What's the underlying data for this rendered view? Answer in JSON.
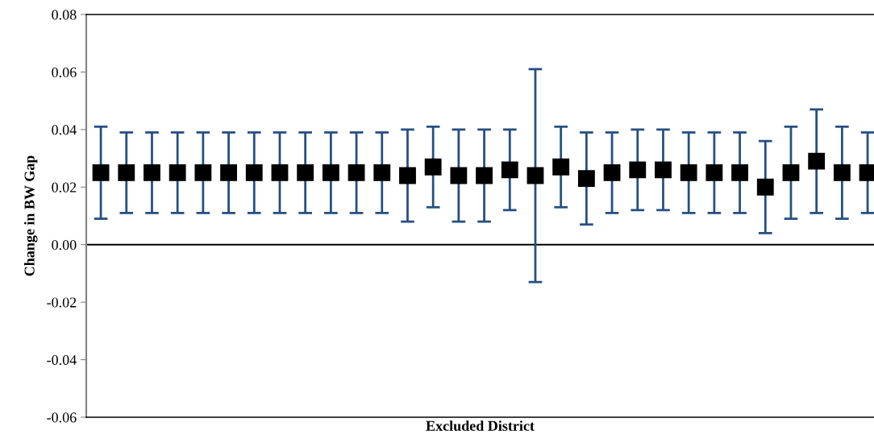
{
  "chart_data": {
    "type": "scatter",
    "xlabel": "Excluded District",
    "ylabel": "Change in BW Gap",
    "categories": [
      null,
      null,
      null,
      null,
      null,
      null,
      null,
      null,
      null,
      null,
      null,
      null,
      null,
      null,
      null,
      null,
      null,
      null,
      null,
      null,
      null,
      null,
      null,
      null,
      null,
      null,
      null,
      null,
      null,
      null,
      null
    ],
    "series": [
      {
        "color": "#000000",
        "values": [
          0.025,
          0.025,
          0.025,
          0.025,
          0.025,
          0.025,
          0.025,
          0.025,
          0.025,
          0.025,
          0.025,
          0.025,
          0.024,
          0.027,
          0.024,
          0.024,
          0.026,
          0.024,
          0.027,
          0.023,
          0.025,
          0.026,
          0.026,
          0.025,
          0.025,
          0.025,
          0.02,
          0.025,
          0.029,
          0.025,
          0.025
        ],
        "errors": [
          [
            0.009,
            0.041
          ],
          [
            0.011,
            0.039
          ],
          [
            0.011,
            0.039
          ],
          [
            0.011,
            0.039
          ],
          [
            0.011,
            0.039
          ],
          [
            0.011,
            0.039
          ],
          [
            0.011,
            0.039
          ],
          [
            0.011,
            0.039
          ],
          [
            0.011,
            0.039
          ],
          [
            0.011,
            0.039
          ],
          [
            0.011,
            0.039
          ],
          [
            0.011,
            0.039
          ],
          [
            0.008,
            0.04
          ],
          [
            0.013,
            0.041
          ],
          [
            0.008,
            0.04
          ],
          [
            0.008,
            0.04
          ],
          [
            0.012,
            0.04
          ],
          [
            -0.013,
            0.061
          ],
          [
            0.013,
            0.041
          ],
          [
            0.007,
            0.039
          ],
          [
            0.011,
            0.039
          ],
          [
            0.012,
            0.04
          ],
          [
            0.012,
            0.04
          ],
          [
            0.011,
            0.039
          ],
          [
            0.011,
            0.039
          ],
          [
            0.011,
            0.039
          ],
          [
            0.004,
            0.036
          ],
          [
            0.009,
            0.041
          ],
          [
            0.011,
            0.047
          ],
          [
            0.009,
            0.041
          ],
          [
            0.011,
            0.039
          ]
        ]
      }
    ],
    "marker": "square",
    "ylim": [
      -0.06,
      0.08
    ],
    "yticks": [
      {
        "value": -0.06,
        "label": "-0.06"
      },
      {
        "value": -0.04,
        "label": "-0.04"
      },
      {
        "value": -0.02,
        "label": "-0.02"
      },
      {
        "value": 0,
        "label": "0.00"
      },
      {
        "value": 0.02,
        "label": "0.02"
      },
      {
        "value": 0.04,
        "label": "0.04"
      },
      {
        "value": 0.06,
        "label": "0.06"
      },
      {
        "value": 0.08,
        "label": "0.08"
      }
    ],
    "ref_lines": [
      {
        "axis": "y",
        "value": 0,
        "color": "#000000"
      }
    ],
    "tick_labels": "y",
    "grid": false,
    "legend": false
  }
}
